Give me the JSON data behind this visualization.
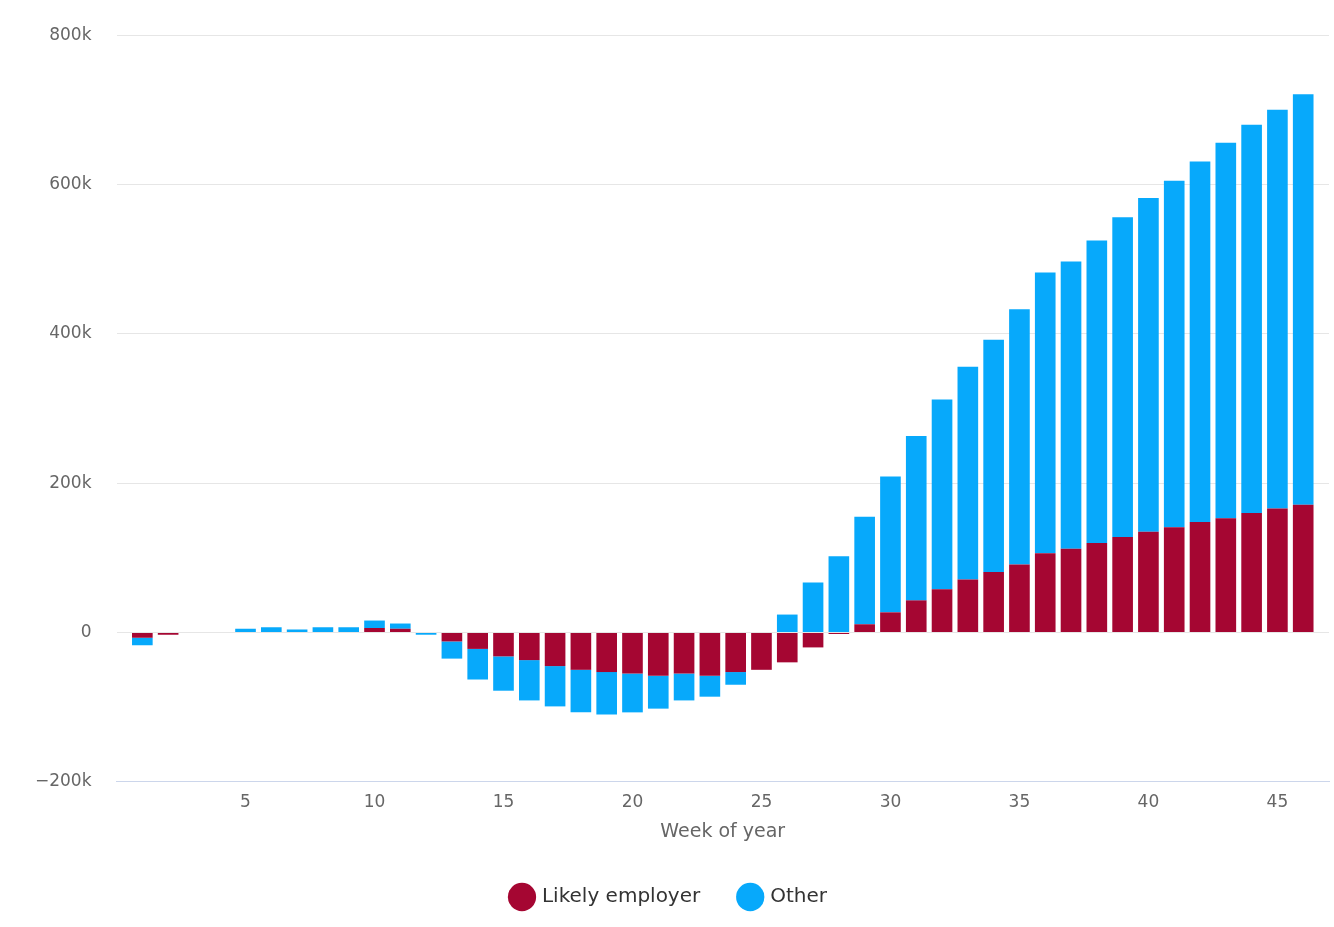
{
  "chart_data": {
    "type": "bar",
    "stacked": true,
    "xlabel": "Week of year",
    "x": [
      1,
      2,
      3,
      4,
      5,
      6,
      7,
      8,
      9,
      10,
      11,
      12,
      13,
      14,
      15,
      16,
      17,
      18,
      19,
      20,
      21,
      22,
      23,
      24,
      25,
      26,
      27,
      28,
      29,
      30,
      31,
      32,
      33,
      34,
      35,
      36,
      37,
      38,
      39,
      40,
      41,
      42,
      43,
      44,
      45,
      46
    ],
    "series": [
      {
        "name": "Likely employer",
        "color": "#a50632",
        "values": [
          -7000,
          -3000,
          null,
          null,
          null,
          null,
          null,
          null,
          null,
          6000,
          5000,
          null,
          -12000,
          -22000,
          -32000,
          -37000,
          -45000,
          -50000,
          -53000,
          -55000,
          -58000,
          -55000,
          -58000,
          -53000,
          -50000,
          -40000,
          -20000,
          -2000,
          11000,
          27000,
          43000,
          58000,
          71000,
          81000,
          91000,
          106000,
          112000,
          120000,
          128000,
          135000,
          141000,
          148000,
          153000,
          160000,
          166000,
          171000
        ]
      },
      {
        "name": "Other",
        "color": "#07a9fb",
        "values": [
          -10000,
          null,
          null,
          null,
          5000,
          7000,
          4000,
          7000,
          7000,
          10000,
          7000,
          -3000,
          -23000,
          -41000,
          -46000,
          -54000,
          -54000,
          -57000,
          -57000,
          -52000,
          -44000,
          -36000,
          -28000,
          -17000,
          null,
          24000,
          67000,
          102000,
          144000,
          182000,
          220000,
          254000,
          285000,
          311000,
          342000,
          376000,
          385000,
          405000,
          428000,
          447000,
          464000,
          483000,
          503000,
          520000,
          534000,
          550000
        ]
      }
    ],
    "xlim": [
      0,
      47
    ],
    "xticks": [
      5,
      10,
      15,
      20,
      25,
      30,
      35,
      40,
      45
    ],
    "ylim": [
      -200000,
      800000
    ],
    "yticks": [
      {
        "value": -200000,
        "label": "−200k"
      },
      {
        "value": 0,
        "label": "0"
      },
      {
        "value": 200000,
        "label": "200k"
      },
      {
        "value": 400000,
        "label": "400k"
      },
      {
        "value": 600000,
        "label": "600k"
      },
      {
        "value": 800000,
        "label": "800k"
      }
    ],
    "grid": "y",
    "legend": "bottom"
  }
}
